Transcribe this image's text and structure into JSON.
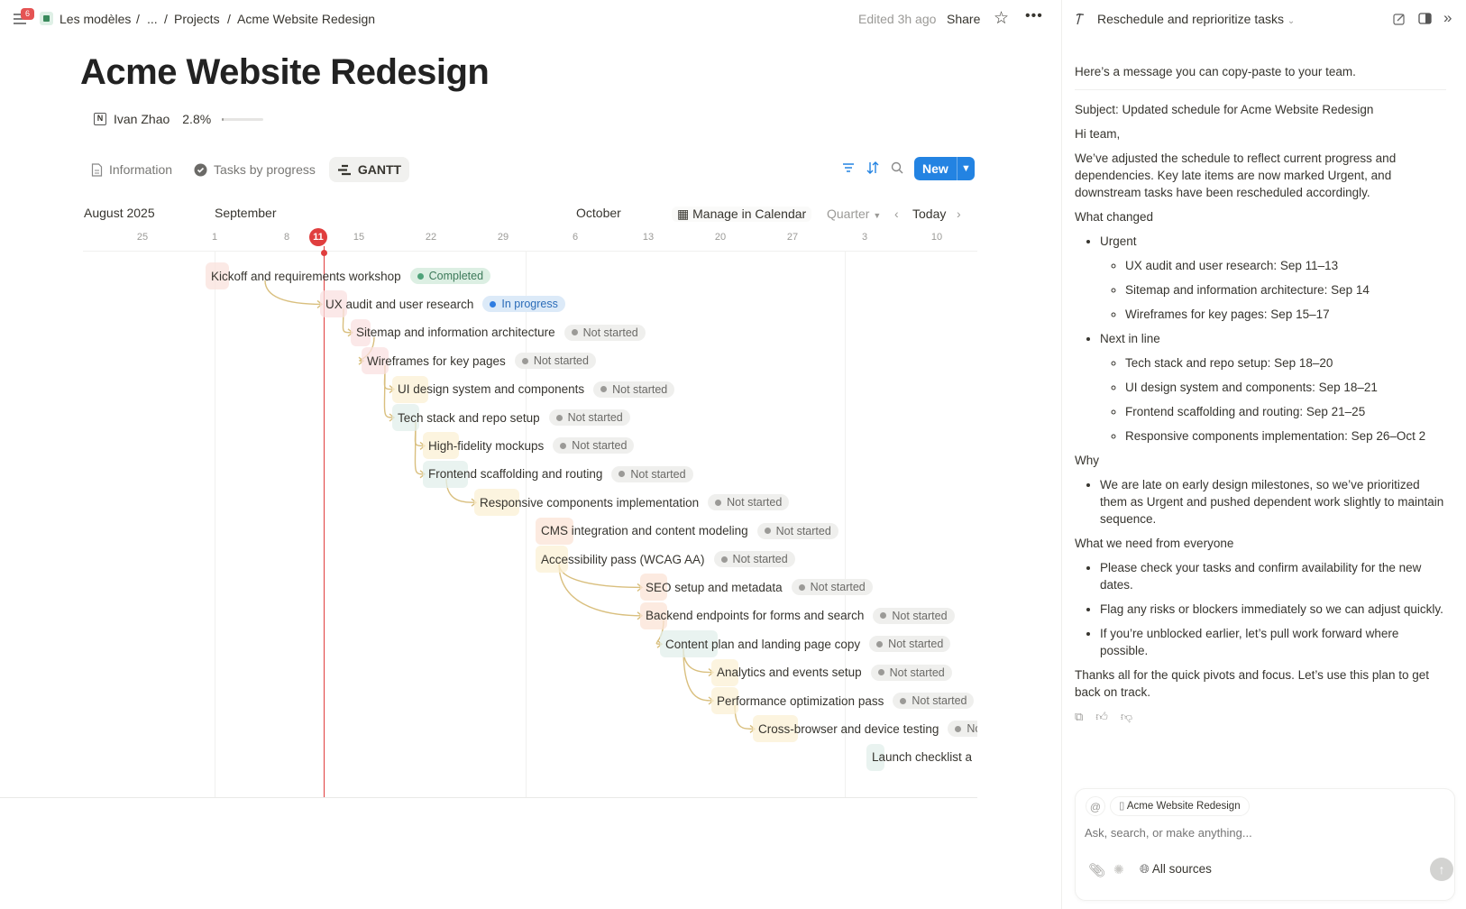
{
  "topbar": {
    "notification_count": "6",
    "breadcrumb": [
      "Les modèles",
      "...",
      "Projects",
      "Acme Website Redesign"
    ],
    "edited": "Edited 3h ago",
    "share": "Share",
    "icons": [
      "sidebar-menu-icon",
      "star-icon",
      "more-icon"
    ]
  },
  "page": {
    "title": "Acme Website Redesign",
    "owner": "Ivan Zhao",
    "progress_label": "2.8%",
    "progress_value": 0.028
  },
  "views": {
    "tabs": [
      {
        "label": "Information",
        "icon": "document-icon"
      },
      {
        "label": "Tasks by progress",
        "icon": "check-circle-icon"
      },
      {
        "label": "GANTT",
        "icon": "gantt-icon",
        "active": true
      }
    ],
    "new_label": "New"
  },
  "gantt": {
    "months": [
      "August 2025",
      "September",
      "October"
    ],
    "days": [
      "25",
      "1",
      "8",
      "11",
      "15",
      "22",
      "29",
      "6",
      "13",
      "20",
      "27",
      "3",
      "10"
    ],
    "today": "11",
    "manage_calendar": "Manage in Calendar",
    "range": "Quarter",
    "today_button": "Today",
    "status_colors": {
      "Completed": {
        "bg": "#dcefe3",
        "dot": "#4fa37a",
        "text": "#3d7a5a"
      },
      "In progress": {
        "bg": "#dceaf8",
        "dot": "#2f7de1",
        "text": "#2b6cb8"
      },
      "Not started": {
        "bg": "#efefed",
        "dot": "#9b9a97",
        "text": "#6b6a67"
      }
    },
    "tasks": [
      {
        "name": "Kickoff and requirements workshop",
        "status": "Completed",
        "color": "#f9e2dc"
      },
      {
        "name": "UX audit and user research",
        "status": "In progress",
        "color": "#f9e0e0"
      },
      {
        "name": "Sitemap and information architecture",
        "status": "Not started",
        "color": "#f9e0e0"
      },
      {
        "name": "Wireframes for key pages",
        "status": "Not started",
        "color": "#f9e0e0"
      },
      {
        "name": "UI design system and components",
        "status": "Not started",
        "color": "#fbf0d4"
      },
      {
        "name": "Tech stack and repo setup",
        "status": "Not started",
        "color": "#e2efeb"
      },
      {
        "name": "High-fidelity mockups",
        "status": "Not started",
        "color": "#fbf0d4"
      },
      {
        "name": "Frontend scaffolding and routing",
        "status": "Not started",
        "color": "#e2efeb"
      },
      {
        "name": "Responsive components implementation",
        "status": "Not started",
        "color": "#fbf0d4"
      },
      {
        "name": "CMS integration and content modeling",
        "status": "Not started",
        "color": "#fbe3d6"
      },
      {
        "name": "Accessibility pass (WCAG AA)",
        "status": "Not started",
        "color": "#fbf0d4"
      },
      {
        "name": "SEO setup and metadata",
        "status": "Not started",
        "color": "#fbe3d6"
      },
      {
        "name": "Backend endpoints for forms and search",
        "status": "Not started",
        "color": "#fbe3d6"
      },
      {
        "name": "Content plan and landing page copy",
        "status": "Not started",
        "color": "#e2efeb"
      },
      {
        "name": "Analytics and events setup",
        "status": "Not started",
        "color": "#fbf0d4"
      },
      {
        "name": "Performance optimization pass",
        "status": "Not started",
        "color": "#fbf0d4"
      },
      {
        "name": "Cross-browser and device testing",
        "status": "Not started",
        "color": "#fbf0d4"
      },
      {
        "name": "Launch checklist a",
        "status": "",
        "color": "#e2efeb"
      }
    ]
  },
  "assistant": {
    "thread_title": "Reschedule and reprioritize tasks",
    "intro": "Here’s a message you can copy-paste to your team.",
    "subject": "Subject: Updated schedule for Acme Website Redesign",
    "greeting": "Hi team,",
    "para": "We’ve adjusted the schedule to reflect current progress and dependencies. Key late items are now marked Urgent, and downstream tasks have been rescheduled accordingly.",
    "changed_heading": "What changed",
    "urgent_label": "Urgent",
    "urgent_items": [
      "UX audit and user research: Sep 11–13",
      "Sitemap and information architecture: Sep 14",
      "Wireframes for key pages: Sep 15–17"
    ],
    "next_label": "Next in line",
    "next_items": [
      "Tech stack and repo setup: Sep 18–20",
      "UI design system and components: Sep 18–21",
      "Frontend scaffolding and routing: Sep 21–25",
      "Responsive components implementation: Sep 26–Oct 2"
    ],
    "why_heading": "Why",
    "why_items": [
      "We are late on early design milestones, so we’ve prioritized them as Urgent and pushed dependent work slightly to maintain sequence."
    ],
    "need_heading": "What we need from everyone",
    "need_items": [
      "Please check your tasks and confirm availability for the new dates.",
      "Flag any risks or blockers immediately so we can adjust quickly.",
      "If you’re unblocked earlier, let’s pull work forward where possible."
    ],
    "closing": "Thanks all for the quick pivots and focus. Let’s use this plan to get back on track.",
    "context_chip": "Acme Website Redesign",
    "input_placeholder": "Ask, search, or make anything...",
    "sources": "All sources"
  }
}
